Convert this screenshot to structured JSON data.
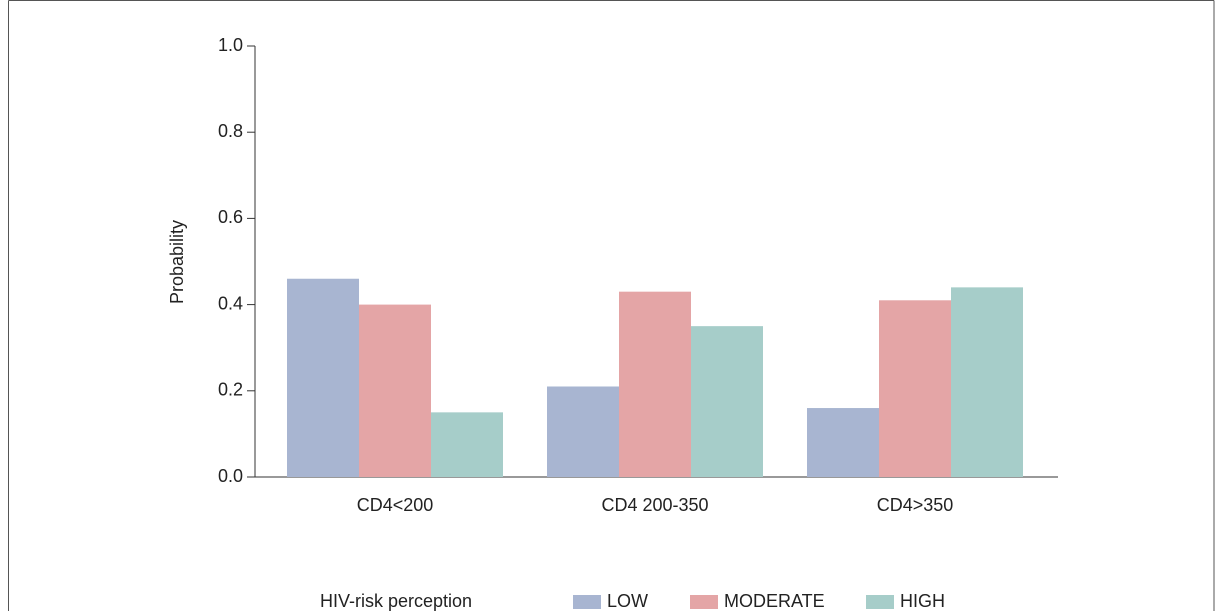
{
  "chart_data": {
    "type": "bar",
    "y_label": "Probability",
    "categories": [
      "CD4<200",
      "CD4 200-350",
      "CD4>350"
    ],
    "series": [
      {
        "name": "LOW",
        "color": "#a8b5d1",
        "values": [
          0.46,
          0.21,
          0.16
        ]
      },
      {
        "name": "MODERATE",
        "color": "#e4a5a6",
        "values": [
          0.4,
          0.43,
          0.41
        ]
      },
      {
        "name": "HIGH",
        "color": "#a6cdc9",
        "values": [
          0.15,
          0.35,
          0.44
        ]
      }
    ],
    "legend_title": "HIV-risk perception",
    "legend": "bottom",
    "ylim": [
      0,
      1
    ],
    "yticks": [
      {
        "value": 0,
        "label": "0.0"
      },
      {
        "value": 0.2,
        "label": "0.2"
      },
      {
        "value": 0.4,
        "label": "0.4"
      },
      {
        "value": 0.6,
        "label": "0.6"
      },
      {
        "value": 0.8,
        "label": "0.8"
      },
      {
        "value": 1,
        "label": "1.0"
      }
    ],
    "grid": false
  }
}
